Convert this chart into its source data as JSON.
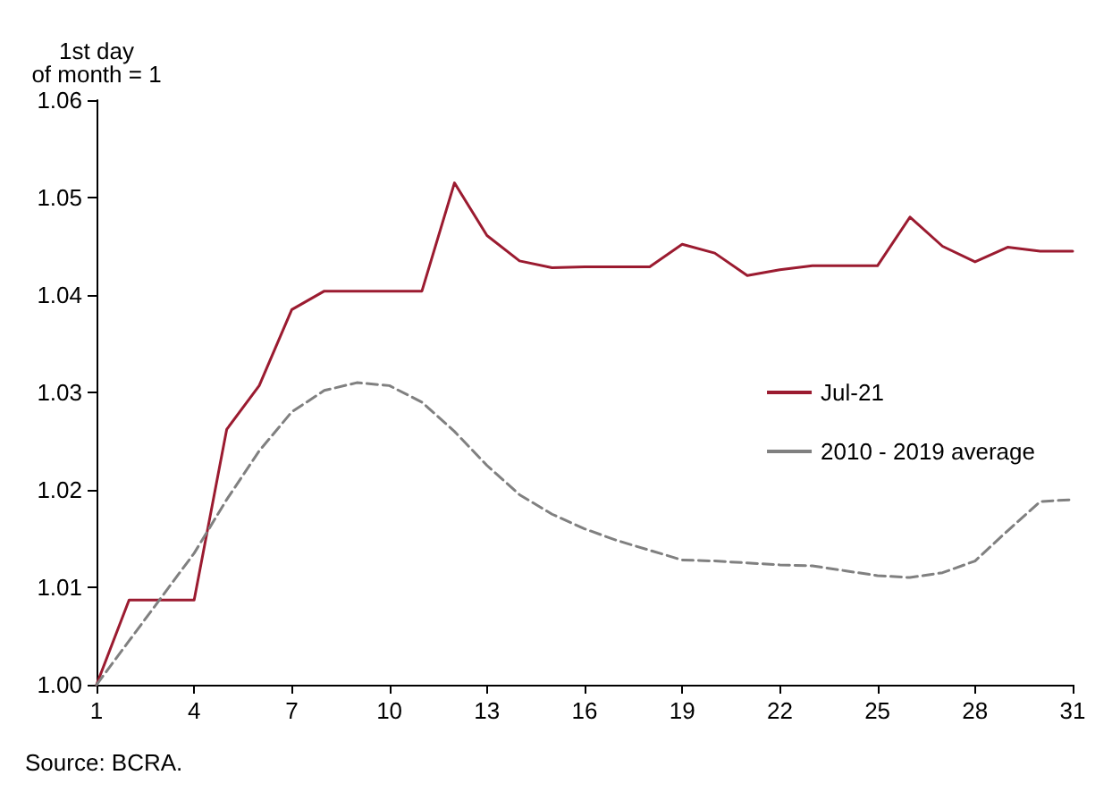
{
  "chart_data": {
    "type": "line",
    "ylabel": "1st day\nof month = 1",
    "x": [
      1,
      2,
      3,
      4,
      5,
      6,
      7,
      8,
      9,
      10,
      11,
      12,
      13,
      14,
      15,
      16,
      17,
      18,
      19,
      20,
      21,
      22,
      23,
      24,
      25,
      26,
      27,
      28,
      29,
      30,
      31
    ],
    "series": [
      {
        "name": "Jul-21",
        "color": "#9b1b30",
        "line_style": "solid",
        "values": [
          1.0,
          1.0087,
          1.0087,
          1.0087,
          1.0262,
          1.0307,
          1.0385,
          1.0404,
          1.0404,
          1.0404,
          1.0404,
          1.0515,
          1.0461,
          1.0435,
          1.0428,
          1.0429,
          1.0429,
          1.0429,
          1.0452,
          1.0443,
          1.042,
          1.0426,
          1.043,
          1.043,
          1.043,
          1.048,
          1.045,
          1.0434,
          1.0449,
          1.0445,
          1.0445
        ]
      },
      {
        "name": "2010 - 2019 average",
        "color": "#808080",
        "line_style": "dashed",
        "values": [
          1.0,
          1.0045,
          1.009,
          1.0135,
          1.019,
          1.024,
          1.028,
          1.0302,
          1.031,
          1.0307,
          1.029,
          1.026,
          1.0225,
          1.0195,
          1.0175,
          1.016,
          1.0148,
          1.0138,
          1.0128,
          1.0127,
          1.0125,
          1.0123,
          1.0122,
          1.0117,
          1.0112,
          1.011,
          1.0115,
          1.0127,
          1.0158,
          1.0188,
          1.019
        ]
      }
    ],
    "xlim": [
      1,
      31
    ],
    "xticks": [
      1,
      4,
      7,
      10,
      13,
      16,
      19,
      22,
      25,
      28,
      31
    ],
    "ylim": [
      1.0,
      1.06
    ],
    "yticks": [
      {
        "value": 1.0,
        "label": "1.00"
      },
      {
        "value": 1.01,
        "label": "1.01"
      },
      {
        "value": 1.02,
        "label": "1.02"
      },
      {
        "value": 1.03,
        "label": "1.03"
      },
      {
        "value": 1.04,
        "label": "1.04"
      },
      {
        "value": 1.05,
        "label": "1.05"
      },
      {
        "value": 1.06,
        "label": "1.06"
      }
    ],
    "grid": false,
    "legend": "right",
    "marker": "none",
    "annotations": [
      "Source: BCRA."
    ]
  }
}
